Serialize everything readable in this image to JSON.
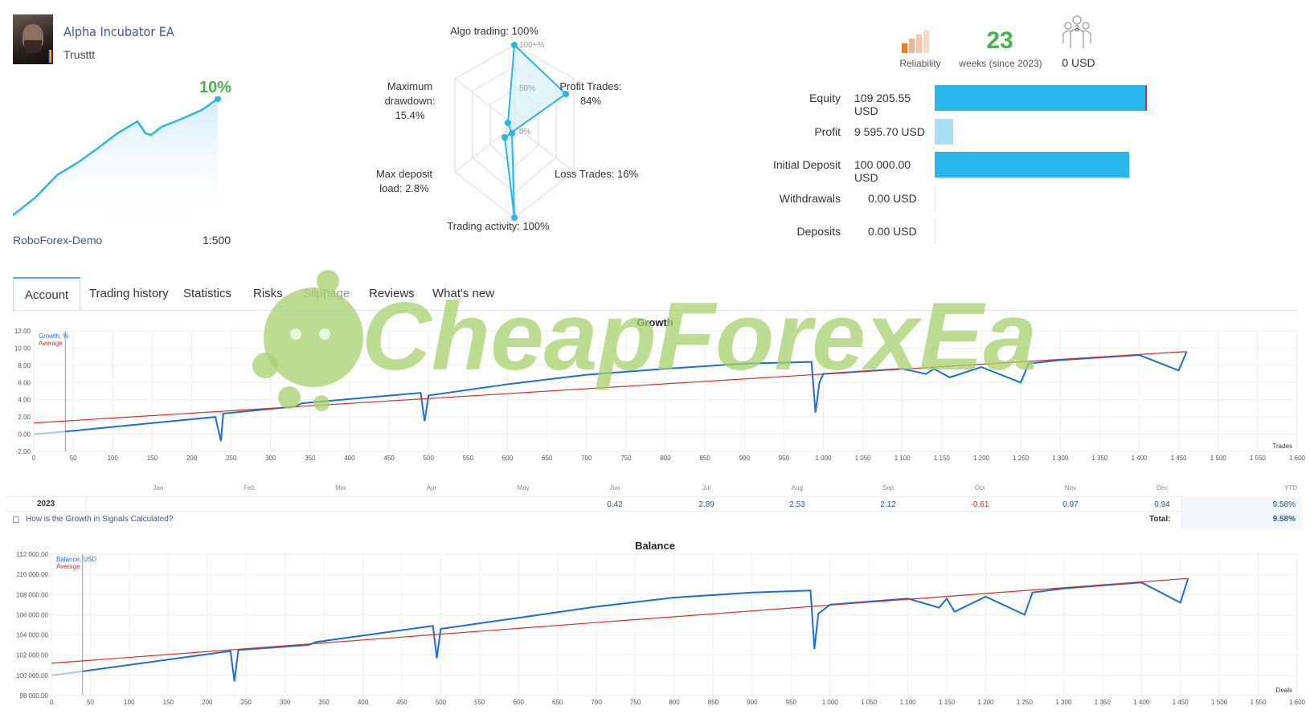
{
  "profile": {
    "name": "Alpha Incubator EA",
    "owner": "Trusttt",
    "growth": "10%",
    "broker": "RoboForex-Demo",
    "leverage": "1:500"
  },
  "radar": {
    "algo": "Algo trading: 100%",
    "profit_trades_1": "Profit Trades:",
    "profit_trades_2": "84%",
    "loss_trades": "Loss Trades: 16%",
    "activity": "Trading activity: 100%",
    "deposit_1": "Max deposit",
    "deposit_2": "load: 2.8%",
    "drawdown_1": "Maximum",
    "drawdown_2": "drawdown:",
    "drawdown_3": "15.4%",
    "ring_100": "100+%",
    "ring_50": "50%",
    "ring_0": "0%"
  },
  "stats": {
    "reliability": "Reliability",
    "weeks": "23",
    "weeks_label": "weeks (since 2023)",
    "subscribers": "3",
    "subscribers_value": "0 USD"
  },
  "financials": [
    {
      "label": "Equity",
      "value": "109 205.55 USD",
      "fraction": 1.0,
      "color": "#29b6e8"
    },
    {
      "label": "Profit",
      "value": "9 595.70 USD",
      "fraction": 0.088,
      "color": "#a9dff4"
    },
    {
      "label": "Initial Deposit",
      "value": "100 000.00 USD",
      "fraction": 0.916,
      "color": "#29b6e8"
    },
    {
      "label": "Withdrawals",
      "value": "0.00 USD",
      "fraction": 0,
      "color": "#29b6e8"
    },
    {
      "label": "Deposits",
      "value": "0.00 USD",
      "fraction": 0,
      "color": "#29b6e8"
    }
  ],
  "tabs": [
    "Account",
    "Trading history",
    "Statistics",
    "Risks",
    "Slippage",
    "Reviews",
    "What's new"
  ],
  "watermark": "CheapForexEa",
  "growth_chart": {
    "title": "Growth",
    "legend_series": "Growth, %",
    "legend_avg": "Average",
    "x_unit": "Trades",
    "y_ticks": [
      "12.00",
      "10.00",
      "8.00",
      "6.00",
      "4.00",
      "2.00",
      "0.00",
      "-2.00"
    ],
    "x_ticks": [
      "0",
      "50",
      "100",
      "150",
      "200",
      "250",
      "300",
      "350",
      "400",
      "450",
      "500",
      "550",
      "600",
      "650",
      "700",
      "750",
      "800",
      "850",
      "900",
      "950",
      "1 000",
      "1 050",
      "1 100",
      "1 150",
      "1 200",
      "1 250",
      "1 300",
      "1 350",
      "1 400",
      "1 450",
      "1 500",
      "1 550",
      "1 600"
    ],
    "months": [
      "Jan",
      "Feb",
      "Mar",
      "Apr",
      "May",
      "Jun",
      "Jul",
      "Aug",
      "Sep",
      "Oct",
      "Nov",
      "Dec",
      "YTD"
    ],
    "year": "2023",
    "monthly": [
      "",
      "",
      "",
      "",
      "",
      "0.42",
      "2.89",
      "2.53",
      "2.12",
      "-0.61",
      "0.97",
      "0.94",
      "9.58%"
    ],
    "footer_link": "How is the Growth in Signals Calculated?",
    "total_label": "Total:",
    "total_value": "9.58%"
  },
  "balance_chart": {
    "title": "Balance",
    "legend_series": "Balance, USD",
    "legend_avg": "Average",
    "x_unit": "Deals",
    "y_ticks": [
      "112 000.00",
      "110 000.00",
      "108 000.00",
      "106 000.00",
      "104 000.00",
      "102 000.00",
      "100 000.00",
      "98 000.00"
    ],
    "x_ticks": [
      "0",
      "50",
      "100",
      "150",
      "200",
      "250",
      "300",
      "350",
      "400",
      "450",
      "500",
      "550",
      "600",
      "650",
      "700",
      "750",
      "800",
      "850",
      "900",
      "950",
      "1 000",
      "1 050",
      "1 100",
      "1 150",
      "1 200",
      "1 250",
      "1 300",
      "1 350",
      "1 400",
      "1 450",
      "1 500",
      "1 550",
      "1 600"
    ]
  },
  "chart_data": [
    {
      "type": "line",
      "title": "Growth",
      "xlabel": "Trades",
      "ylabel": "",
      "xlim": [
        0,
        1600
      ],
      "ylim": [
        -2,
        12
      ],
      "series": [
        {
          "name": "Growth, %",
          "x": [
            0,
            40,
            230,
            237,
            240,
            330,
            340,
            490,
            495,
            500,
            600,
            700,
            800,
            900,
            985,
            990,
            995,
            1000,
            1100,
            1130,
            1140,
            1160,
            1200,
            1250,
            1260,
            1300,
            1400,
            1450,
            1460
          ],
          "y": [
            0,
            0.3,
            2.0,
            -0.8,
            2.4,
            3.2,
            3.6,
            4.8,
            1.5,
            4.5,
            5.8,
            6.9,
            7.6,
            8.2,
            8.4,
            2.5,
            6.0,
            7.0,
            7.6,
            7.0,
            7.6,
            6.6,
            7.8,
            6.0,
            8.2,
            8.6,
            9.2,
            7.4,
            9.6
          ]
        },
        {
          "name": "Average",
          "x": [
            0,
            1460
          ],
          "y": [
            1.3,
            9.6
          ]
        }
      ]
    },
    {
      "type": "line",
      "title": "Balance",
      "xlabel": "Deals",
      "ylabel": "",
      "xlim": [
        0,
        1600
      ],
      "ylim": [
        98000,
        112000
      ],
      "series": [
        {
          "name": "Balance, USD",
          "x": [
            0,
            40,
            230,
            235,
            240,
            330,
            340,
            490,
            495,
            500,
            600,
            700,
            800,
            900,
            975,
            980,
            985,
            1000,
            1100,
            1140,
            1150,
            1160,
            1200,
            1250,
            1260,
            1300,
            1400,
            1450,
            1460
          ],
          "y": [
            100000,
            100400,
            102400,
            99400,
            102500,
            103000,
            103300,
            104900,
            101700,
            104600,
            105700,
            106800,
            107700,
            108200,
            108400,
            102600,
            106100,
            107000,
            107600,
            106700,
            107600,
            106300,
            107800,
            106000,
            108200,
            108600,
            109200,
            107200,
            109600
          ]
        },
        {
          "name": "Average",
          "x": [
            0,
            1460
          ],
          "y": [
            101200,
            109600
          ]
        }
      ]
    }
  ]
}
